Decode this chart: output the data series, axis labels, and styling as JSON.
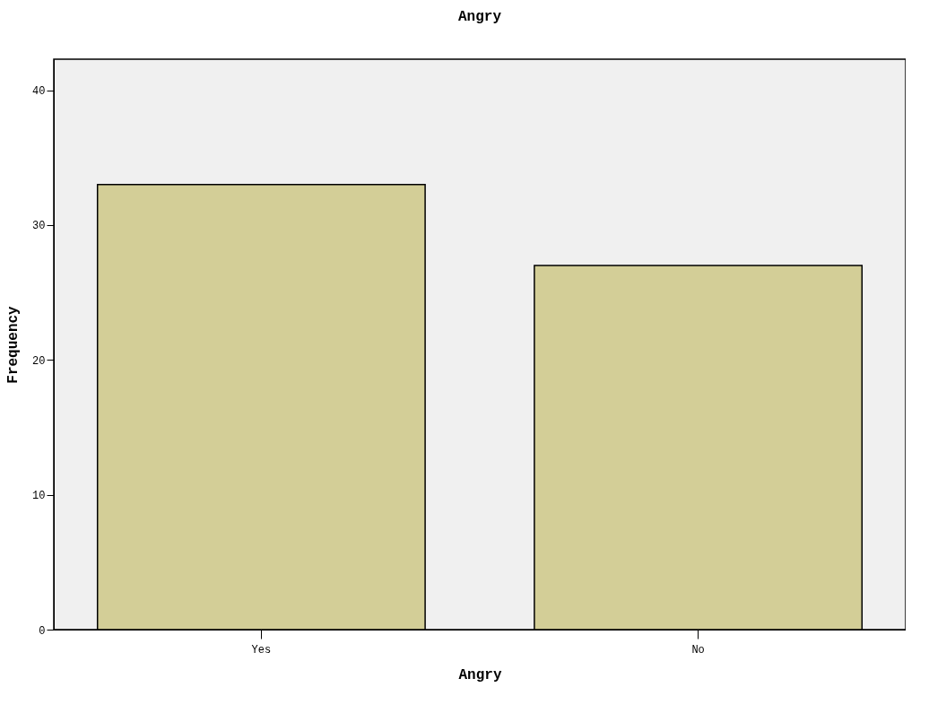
{
  "chart_data": {
    "type": "bar",
    "title": "Angry",
    "xlabel": "Angry",
    "ylabel": "Frequency",
    "categories": [
      "Yes",
      "No"
    ],
    "values": [
      33,
      27
    ],
    "color": "#d3ce97",
    "ylim": [
      0,
      42.3
    ],
    "yticks": [
      0,
      10,
      20,
      30,
      40
    ],
    "grid": false
  }
}
